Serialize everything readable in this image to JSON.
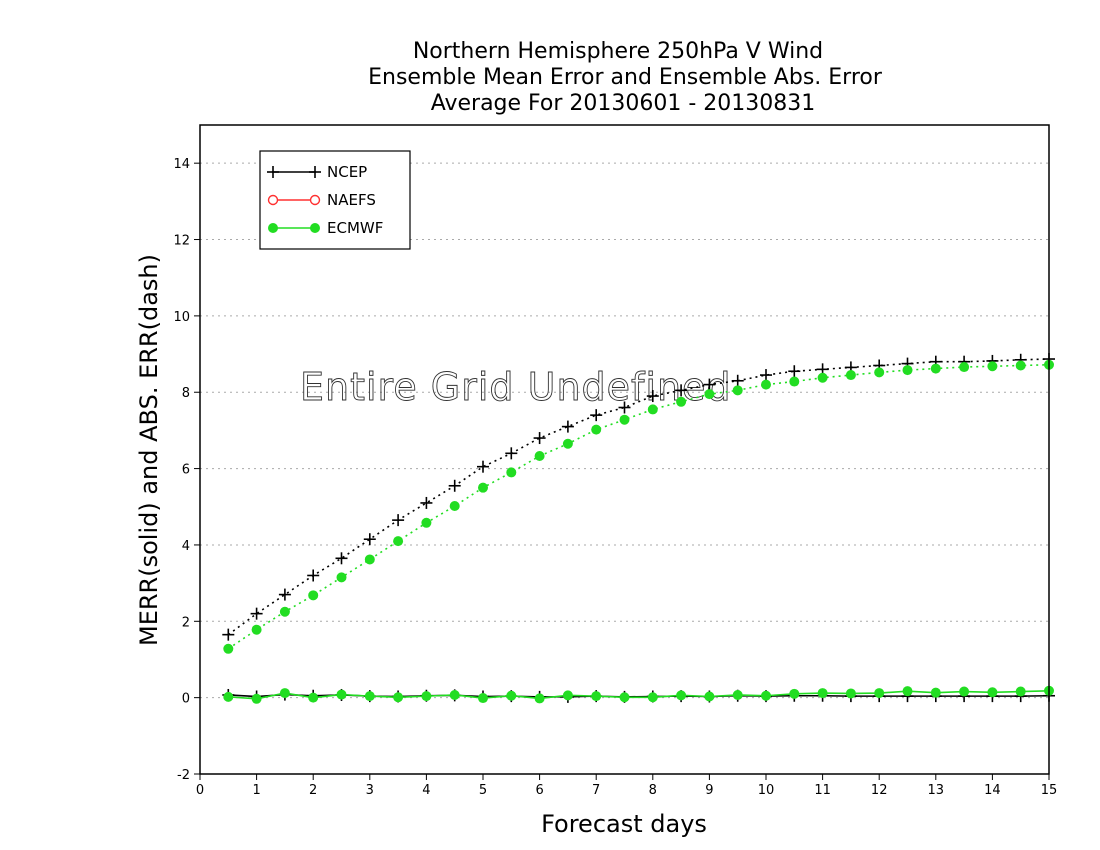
{
  "chart_data": {
    "type": "line",
    "title": [
      "Northern Hemisphere 250hPa V Wind",
      "Ensemble Mean Error and Ensemble Abs. Error",
      "Average For 20130601 - 20130831"
    ],
    "xlabel": "Forecast days",
    "ylabel": "MERR(solid) and ABS. ERR(dash)",
    "xlim": [
      0,
      15
    ],
    "ylim": [
      -2,
      15
    ],
    "xticks": [
      "0",
      "1",
      "2",
      "3",
      "4",
      "5",
      "6",
      "7",
      "8",
      "9",
      "10",
      "11",
      "12",
      "13",
      "14",
      "15"
    ],
    "yticks": [
      "-2",
      "0",
      "2",
      "4",
      "6",
      "8",
      "10",
      "12",
      "14"
    ],
    "grid": "horizontal dotted",
    "legend_position": "top-left",
    "annotation": "Entire Grid Undefined",
    "x": [
      0.5,
      1,
      1.5,
      2,
      2.5,
      3,
      3.5,
      4,
      4.5,
      5,
      5.5,
      6,
      6.5,
      7,
      7.5,
      8,
      8.5,
      9,
      9.5,
      10,
      10.5,
      11,
      11.5,
      12,
      12.5,
      13,
      13.5,
      14,
      14.5,
      15
    ],
    "series": [
      {
        "name": "NCEP",
        "marker": "plus",
        "color": "#000000",
        "abs_err": [
          1.65,
          2.2,
          2.7,
          3.2,
          3.65,
          4.15,
          4.65,
          5.1,
          5.55,
          6.05,
          6.4,
          6.8,
          7.1,
          7.4,
          7.6,
          7.9,
          8.05,
          8.2,
          8.3,
          8.45,
          8.55,
          8.6,
          8.65,
          8.7,
          8.75,
          8.8,
          8.8,
          8.82,
          8.85,
          8.87
        ],
        "mean_err": [
          0.07,
          0.03,
          0.08,
          0.05,
          0.07,
          0.04,
          0.03,
          0.05,
          0.06,
          0.03,
          0.04,
          0.02,
          0.02,
          0.04,
          0.02,
          0.03,
          0.04,
          0.03,
          0.05,
          0.04,
          0.05,
          0.05,
          0.04,
          0.04,
          0.04,
          0.04,
          0.04,
          0.04,
          0.04,
          0.05
        ]
      },
      {
        "name": "NAEFS",
        "marker": "open-circle",
        "color": "#ff3030",
        "abs_err": [],
        "mean_err": []
      },
      {
        "name": "ECMWF",
        "marker": "filled-circle",
        "color": "#22dd22",
        "abs_err": [
          1.28,
          1.78,
          2.25,
          2.68,
          3.15,
          3.62,
          4.1,
          4.58,
          5.02,
          5.5,
          5.9,
          6.33,
          6.65,
          7.02,
          7.28,
          7.55,
          7.75,
          7.95,
          8.05,
          8.2,
          8.28,
          8.38,
          8.45,
          8.52,
          8.58,
          8.62,
          8.66,
          8.68,
          8.7,
          8.72
        ],
        "mean_err": [
          0.02,
          -0.03,
          0.12,
          0.0,
          0.08,
          0.04,
          0.01,
          0.04,
          0.07,
          -0.01,
          0.05,
          -0.02,
          0.06,
          0.04,
          0.01,
          0.01,
          0.06,
          0.03,
          0.07,
          0.05,
          0.1,
          0.12,
          0.11,
          0.12,
          0.17,
          0.13,
          0.16,
          0.14,
          0.16,
          0.18
        ]
      }
    ]
  }
}
